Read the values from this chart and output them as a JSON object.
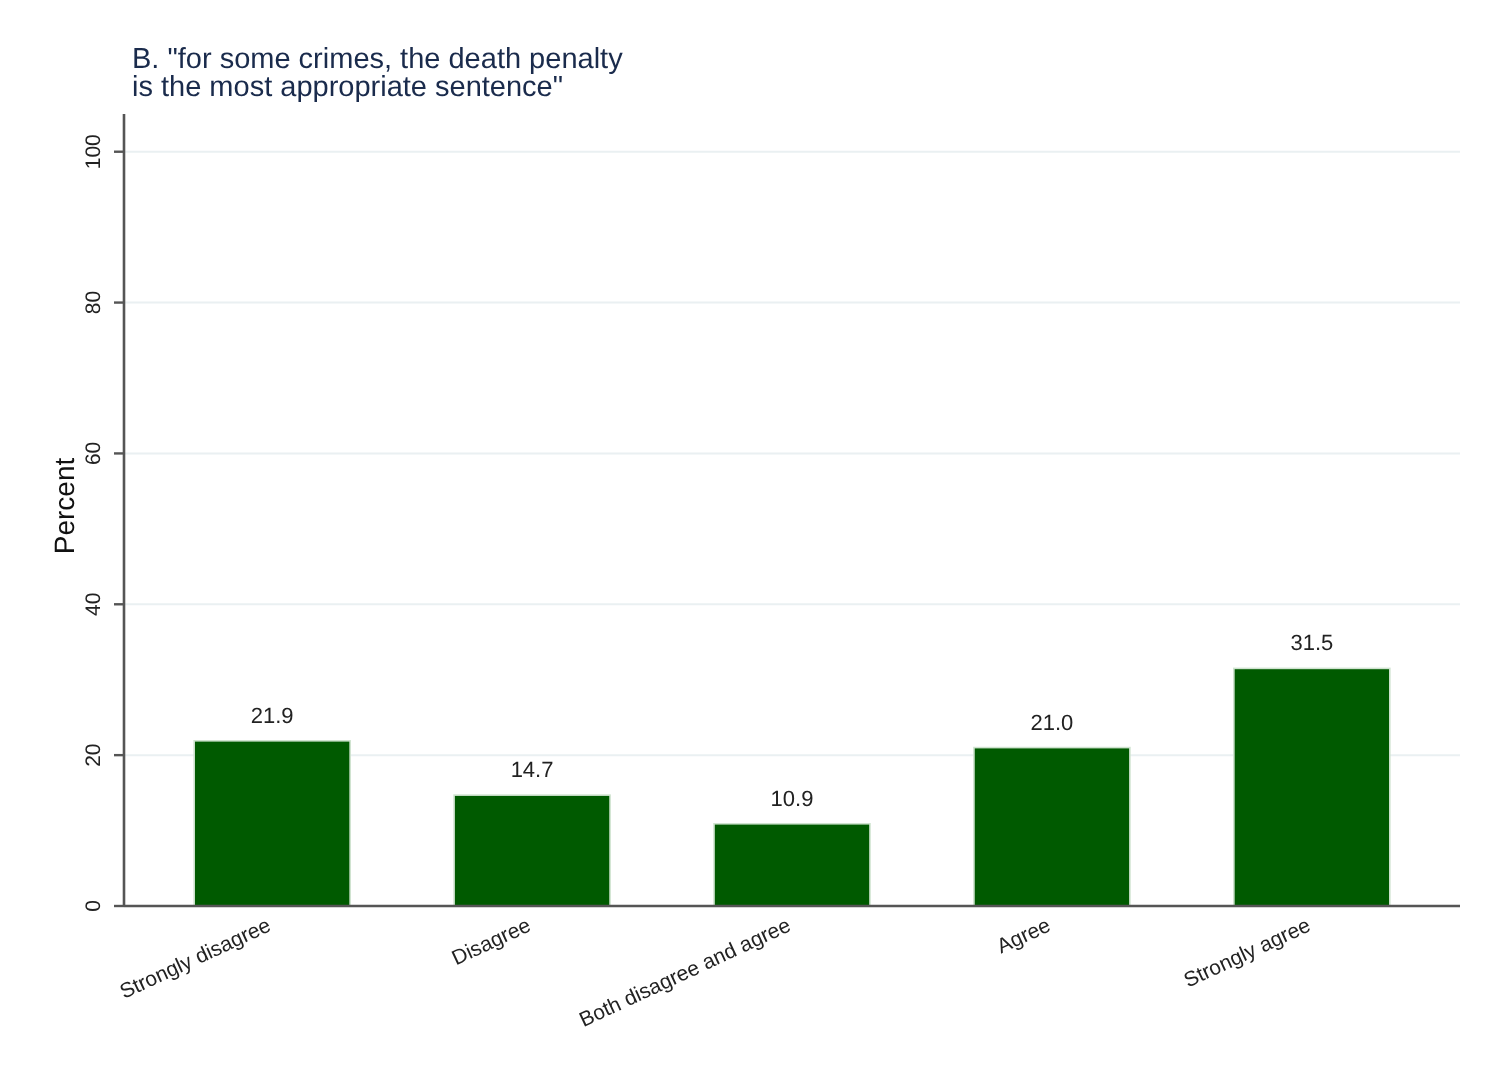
{
  "chart_data": {
    "type": "bar",
    "title": "B. \"for some crimes, the death penalty\nis the most appropriate sentence\"",
    "ylabel": "Percent",
    "categories": [
      "Strongly disagree",
      "Disagree",
      "Both disagree and agree",
      "Agree",
      "Strongly agree"
    ],
    "values": [
      21.9,
      14.7,
      10.9,
      21.0,
      31.5
    ],
    "value_labels": [
      "21.9",
      "14.7",
      "10.9",
      "21.0",
      "31.5"
    ],
    "color": "#005a00",
    "ylim": [
      0,
      105
    ],
    "yticks": [
      0,
      20,
      40,
      60,
      80,
      100
    ],
    "grid": "y"
  }
}
